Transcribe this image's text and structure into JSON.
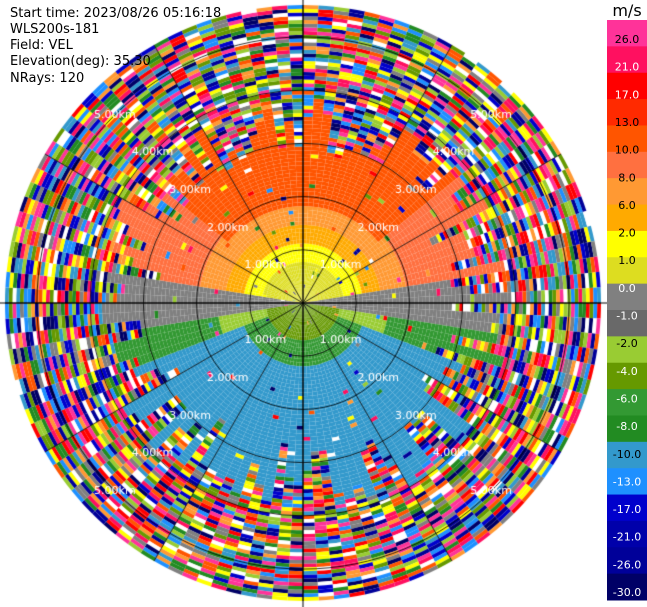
{
  "info": {
    "start_time": "Start time: 2023/08/26 05:16:18",
    "instrument": "WLS200s-181",
    "field": "Field: VEL",
    "elevation": "Elevation(deg): 35.30",
    "nrays": "NRays: 120"
  },
  "chart_data": {
    "type": "heatmap",
    "projection": "polar PPI",
    "range_rings": [
      {
        "label": "1.00km",
        "value": 1.0
      },
      {
        "label": "2.00km",
        "value": 2.0
      },
      {
        "label": "3.00km",
        "value": 3.0
      },
      {
        "label": "4.00km",
        "value": 4.0
      },
      {
        "label": "5.00km",
        "value": 5.0
      }
    ],
    "max_range": 5.6,
    "colorbar": {
      "unit_label": "m/s",
      "ticks": [
        "26.0",
        "21.0",
        "17.0",
        "13.0",
        "10.0",
        "8.0",
        "6.0",
        "2.0",
        "1.0",
        "0.0",
        "-1.0",
        "-2.0",
        "-4.0",
        "-6.0",
        "-8.0",
        "-10.0",
        "-13.0",
        "-17.0",
        "-21.0",
        "-26.0",
        "-30.0"
      ],
      "colors": [
        "#ff3399",
        "#ff1060",
        "#ff0000",
        "#ff2a00",
        "#ff5500",
        "#ff7040",
        "#ff9933",
        "#ffaa00",
        "#ffff00",
        "#dddd20",
        "#808080",
        "#696969",
        "#99cc33",
        "#669900",
        "#339933",
        "#228b22",
        "#3399cc",
        "#1e90ff",
        "#0000cc",
        "#0000aa",
        "#000099",
        "#000066"
      ]
    },
    "pattern": {
      "approaching_sector_center_deg": 0,
      "receding_sector_center_deg": 180,
      "approaching_speed_range": [
        2,
        13
      ],
      "receding_speed_range": [
        -10,
        -1
      ],
      "noise_start_km": 3.2
    }
  }
}
